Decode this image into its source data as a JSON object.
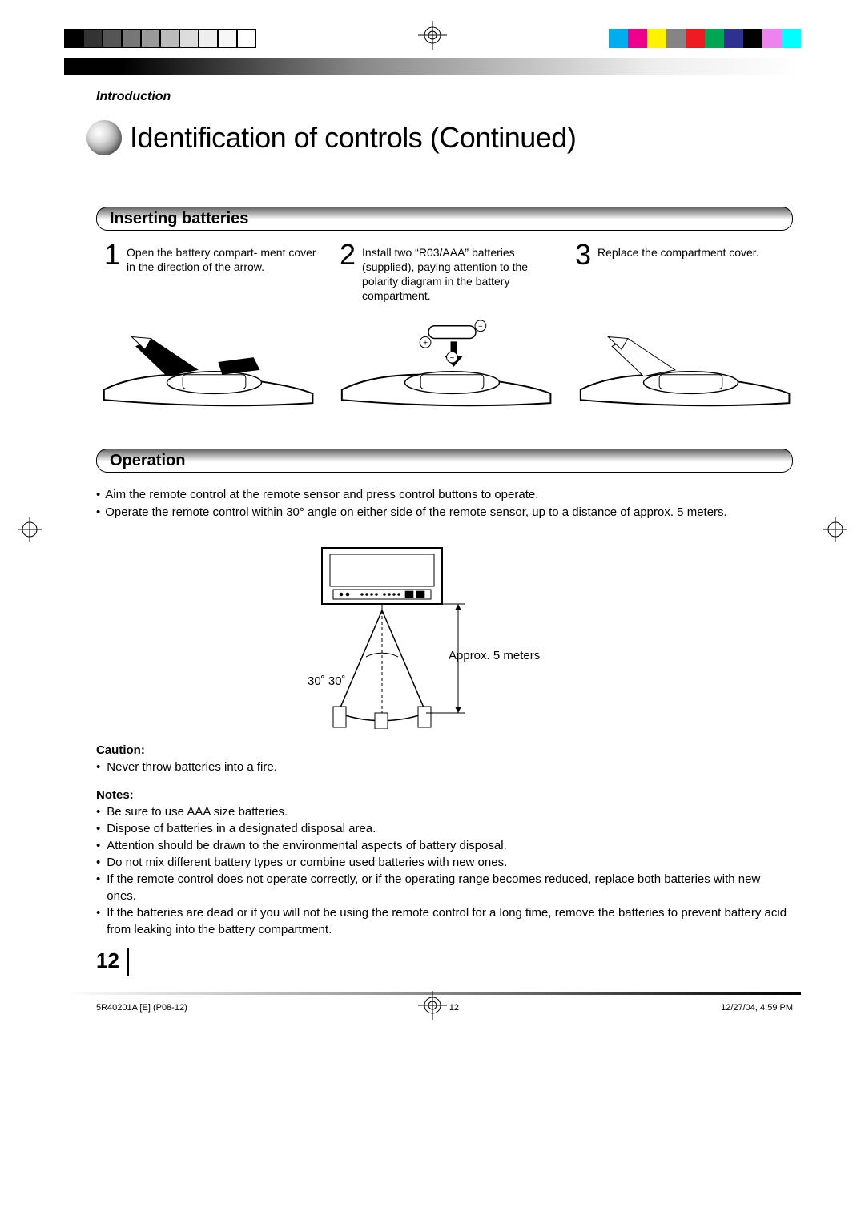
{
  "printer_bars": {
    "left_colors": [
      "#000000",
      "#333333",
      "#555555",
      "#777777",
      "#999999",
      "#bbbbbb",
      "#dddddd",
      "#eeeeee",
      "#f7f7f7",
      "#ffffff"
    ],
    "right_colors": [
      "#00aeef",
      "#ec008c",
      "#fff200",
      "#858585",
      "#ed1c24",
      "#00a651",
      "#2e3192",
      "#000000",
      "#ee82ee",
      "#00ffff"
    ]
  },
  "header": {
    "section_label": "Introduction",
    "page_title": "Identification of controls (Continued)"
  },
  "sections": {
    "inserting": {
      "title": "Inserting batteries",
      "steps": [
        {
          "num": "1",
          "text": "Open the battery compart-\nment cover in the direction of the arrow."
        },
        {
          "num": "2",
          "text": "Install two “R03/AAA” batteries (supplied), paying attention to the polarity diagram in the battery compartment."
        },
        {
          "num": "3",
          "text": "Replace the compartment cover."
        }
      ]
    },
    "operation": {
      "title": "Operation",
      "bullets": [
        "Aim the remote control at the remote sensor and press control buttons to operate.",
        "Operate the remote control within 30° angle on either side of the remote sensor, up to a distance of approx. 5 meters."
      ],
      "diagram": {
        "approx_label": "Approx. 5 meters",
        "angle_label": "30˚   30˚",
        "angle_deg": 30
      }
    },
    "caution": {
      "title": "Caution:",
      "items": [
        "Never throw batteries into a fire."
      ]
    },
    "notes": {
      "title": "Notes:",
      "items": [
        "Be sure to use AAA size batteries.",
        "Dispose of batteries in a designated disposal area.",
        "Attention should be drawn to the environmental aspects of battery disposal.",
        "Do not mix different battery types or combine used batteries with new ones.",
        "If the remote control does not operate correctly, or if the operating range becomes reduced, replace both batteries with new ones.",
        "If the batteries are dead or if you will not be using the remote control for a long time, remove the batteries to prevent battery acid from leaking into the battery compartment."
      ]
    }
  },
  "footer": {
    "page_number": "12",
    "doc_id": "5R40201A [E] (P08-12)",
    "sheet_num": "12",
    "timestamp": "12/27/04, 4:59 PM"
  },
  "style": {
    "section_bar_gradient": [
      "#666666",
      "#aaaaaa",
      "#ffffff"
    ],
    "background": "#ffffff",
    "text_color": "#000000"
  }
}
